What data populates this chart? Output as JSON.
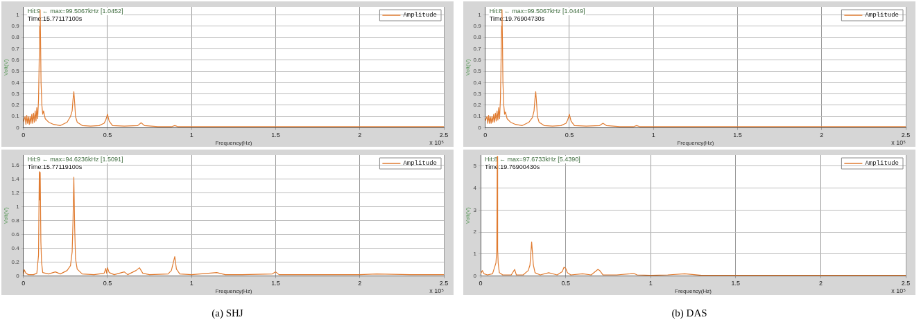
{
  "chart_data": [
    {
      "type": "line",
      "xlabel": "Frequency(Hz)",
      "ylabel": "Volt(V)",
      "legend": "top right",
      "grid": true,
      "marker": "none",
      "line_style": "solid",
      "xlim": [
        0,
        2.5
      ],
      "xticks": [
        0,
        0.5,
        1,
        1.5,
        2,
        2.5
      ],
      "ylim": [
        0,
        1.07
      ],
      "yticks": [
        0,
        0.1,
        0.2,
        0.3,
        0.4,
        0.5,
        0.6,
        0.7,
        0.8,
        0.9,
        1
      ],
      "annotations": [
        "Hit:9 ← max=99.5067kHz [1.0452]",
        "Time:15.77117100s",
        "x 10⁵"
      ],
      "x": [
        0,
        0.01,
        0.015,
        0.02,
        0.025,
        0.03,
        0.035,
        0.04,
        0.045,
        0.05,
        0.055,
        0.06,
        0.065,
        0.07,
        0.075,
        0.08,
        0.085,
        0.09,
        0.093,
        0.097,
        0.0995,
        0.102,
        0.105,
        0.11,
        0.115,
        0.12,
        0.13,
        0.15,
        0.18,
        0.22,
        0.26,
        0.28,
        0.29,
        0.295,
        0.3,
        0.305,
        0.31,
        0.32,
        0.35,
        0.4,
        0.45,
        0.48,
        0.49,
        0.5,
        0.51,
        0.53,
        0.6,
        0.68,
        0.7,
        0.72,
        0.8,
        0.88,
        0.9,
        0.92,
        1,
        1.1,
        1.5,
        2,
        2.5
      ],
      "series": [
        {
          "name": "Amplitude",
          "color": "#e07b30",
          "values": [
            0.05,
            0.1,
            0.03,
            0.11,
            0.04,
            0.1,
            0.03,
            0.1,
            0.04,
            0.12,
            0.04,
            0.13,
            0.05,
            0.15,
            0.06,
            0.18,
            0.08,
            0.25,
            0.5,
            0.9,
            1.045,
            0.8,
            0.4,
            0.2,
            0.12,
            0.15,
            0.08,
            0.05,
            0.03,
            0.02,
            0.05,
            0.1,
            0.15,
            0.25,
            0.32,
            0.22,
            0.1,
            0.05,
            0.02,
            0.015,
            0.02,
            0.04,
            0.07,
            0.12,
            0.06,
            0.02,
            0.015,
            0.02,
            0.045,
            0.02,
            0.01,
            0.01,
            0.02,
            0.01,
            0.01,
            0.01,
            0.01,
            0.01,
            0.01
          ]
        }
      ]
    },
    {
      "type": "line",
      "xlabel": "Frequency(Hz)",
      "ylabel": "Volt(V)",
      "legend": "top right",
      "grid": true,
      "marker": "none",
      "line_style": "solid",
      "xlim": [
        0,
        2.5
      ],
      "xticks": [
        0,
        0.5,
        1,
        1.5,
        2,
        2.5
      ],
      "ylim": [
        0,
        1.75
      ],
      "yticks": [
        0,
        0.2,
        0.4,
        0.6,
        0.8,
        1,
        1.2,
        1.4,
        1.6
      ],
      "annotations": [
        "Hit:9 ← max=94.6236kHz [1.5091]",
        "Time:15.77119100s",
        "x 10⁵",
        "(a) SHJ"
      ],
      "x": [
        0,
        0.005,
        0.015,
        0.03,
        0.06,
        0.08,
        0.09,
        0.0946,
        0.098,
        0.1,
        0.104,
        0.108,
        0.115,
        0.15,
        0.19,
        0.22,
        0.26,
        0.28,
        0.29,
        0.295,
        0.3,
        0.305,
        0.31,
        0.32,
        0.35,
        0.42,
        0.48,
        0.49,
        0.495,
        0.5,
        0.51,
        0.54,
        0.6,
        0.62,
        0.67,
        0.69,
        0.71,
        0.75,
        0.86,
        0.88,
        0.9,
        0.91,
        0.93,
        1,
        1.1,
        1.15,
        1.2,
        1.3,
        1.48,
        1.5,
        1.52,
        1.8,
        2,
        2.1,
        2.3,
        2.5
      ],
      "series": [
        {
          "name": "Amplitude",
          "color": "#e07b30",
          "values": [
            0.02,
            0.09,
            0.04,
            0.02,
            0.02,
            0.04,
            0.3,
            1.51,
            1.1,
            1.5,
            0.5,
            0.2,
            0.05,
            0.03,
            0.06,
            0.03,
            0.08,
            0.15,
            0.35,
            0.8,
            1.43,
            0.7,
            0.25,
            0.1,
            0.03,
            0.02,
            0.04,
            0.11,
            0.04,
            0.12,
            0.05,
            0.02,
            0.06,
            0.02,
            0.08,
            0.12,
            0.04,
            0.02,
            0.03,
            0.08,
            0.28,
            0.1,
            0.03,
            0.02,
            0.04,
            0.05,
            0.02,
            0.02,
            0.03,
            0.06,
            0.02,
            0.02,
            0.02,
            0.03,
            0.02,
            0.02
          ]
        }
      ]
    },
    {
      "type": "line",
      "xlabel": "Frequency(Hz)",
      "ylabel": "Volt(V)",
      "legend": "top right",
      "grid": true,
      "marker": "none",
      "line_style": "solid",
      "xlim": [
        0,
        2.5
      ],
      "xticks": [
        0,
        0.5,
        1,
        1.5,
        2,
        2.5
      ],
      "ylim": [
        0,
        1.07
      ],
      "yticks": [
        0,
        0.1,
        0.2,
        0.3,
        0.4,
        0.5,
        0.6,
        0.7,
        0.8,
        0.9,
        1
      ],
      "annotations": [
        "Hit:8 ← max=99.5067kHz [1.0449]",
        "Time:19.76904730s",
        "x 10⁵"
      ],
      "x": [
        0,
        0.01,
        0.015,
        0.02,
        0.025,
        0.03,
        0.035,
        0.04,
        0.045,
        0.05,
        0.055,
        0.06,
        0.065,
        0.07,
        0.075,
        0.08,
        0.085,
        0.09,
        0.093,
        0.097,
        0.0995,
        0.102,
        0.105,
        0.11,
        0.115,
        0.12,
        0.13,
        0.15,
        0.18,
        0.22,
        0.26,
        0.28,
        0.29,
        0.295,
        0.3,
        0.305,
        0.31,
        0.32,
        0.35,
        0.4,
        0.45,
        0.48,
        0.49,
        0.5,
        0.51,
        0.53,
        0.6,
        0.68,
        0.7,
        0.72,
        0.8,
        0.88,
        0.9,
        0.92,
        1,
        1.1,
        1.5,
        2,
        2.5
      ],
      "series": [
        {
          "name": "Amplitude",
          "color": "#e07b30",
          "values": [
            0.06,
            0.1,
            0.04,
            0.11,
            0.04,
            0.1,
            0.04,
            0.1,
            0.05,
            0.12,
            0.05,
            0.13,
            0.06,
            0.15,
            0.07,
            0.18,
            0.08,
            0.25,
            0.5,
            0.9,
            1.045,
            0.8,
            0.4,
            0.2,
            0.12,
            0.14,
            0.08,
            0.05,
            0.03,
            0.02,
            0.05,
            0.09,
            0.15,
            0.25,
            0.32,
            0.22,
            0.1,
            0.05,
            0.02,
            0.015,
            0.02,
            0.04,
            0.07,
            0.12,
            0.06,
            0.02,
            0.015,
            0.02,
            0.04,
            0.02,
            0.01,
            0.01,
            0.02,
            0.01,
            0.01,
            0.01,
            0.01,
            0.01,
            0.01
          ]
        }
      ]
    },
    {
      "type": "line",
      "xlabel": "Frequency(Hz)",
      "ylabel": "Volt(V)",
      "legend": "top right",
      "grid": true,
      "marker": "none",
      "line_style": "solid",
      "xlim": [
        0,
        2.5
      ],
      "xticks": [
        0,
        0.5,
        1,
        1.5,
        2,
        2.5
      ],
      "ylim": [
        0,
        5.5
      ],
      "yticks": [
        0,
        1,
        2,
        3,
        4,
        5
      ],
      "annotations": [
        "Hit:8 ← max=97.6733kHz [5.4390]",
        "Time:19.76900430s",
        "x 10⁵",
        "(b) DAS"
      ],
      "x": [
        0,
        0.01,
        0.02,
        0.04,
        0.07,
        0.09,
        0.095,
        0.0977,
        0.1,
        0.103,
        0.11,
        0.13,
        0.18,
        0.2,
        0.21,
        0.25,
        0.28,
        0.29,
        0.3,
        0.31,
        0.32,
        0.35,
        0.4,
        0.45,
        0.48,
        0.49,
        0.5,
        0.51,
        0.53,
        0.6,
        0.65,
        0.69,
        0.7,
        0.72,
        0.8,
        0.88,
        0.9,
        0.92,
        1,
        1.1,
        1.2,
        1.3,
        1.5,
        2,
        2.5
      ],
      "series": [
        {
          "name": "Amplitude",
          "color": "#e07b30",
          "values": [
            0.1,
            0.25,
            0.1,
            0.05,
            0.1,
            0.6,
            1.2,
            5.44,
            1.2,
            0.6,
            0.15,
            0.05,
            0.05,
            0.3,
            0.05,
            0.05,
            0.25,
            0.5,
            1.55,
            0.5,
            0.15,
            0.05,
            0.15,
            0.05,
            0.2,
            0.4,
            0.35,
            0.15,
            0.05,
            0.1,
            0.05,
            0.3,
            0.25,
            0.05,
            0.05,
            0.1,
            0.12,
            0.05,
            0.03,
            0.05,
            0.1,
            0.03,
            0.03,
            0.03,
            0.03
          ]
        }
      ]
    }
  ]
}
